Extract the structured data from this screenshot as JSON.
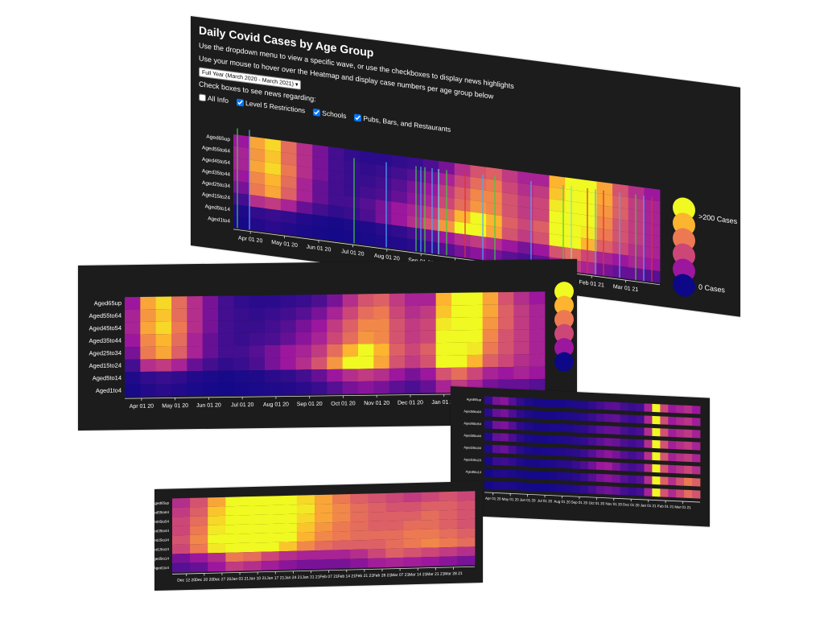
{
  "title": "Daily Covid Cases by Age Group",
  "instructions": [
    "Use the dropdown menu to view a specific wave, or use the checkboxes to display news highlights",
    "Use your mouse to hover over the Heatmap and display case numbers per age group below"
  ],
  "dropdown": "Full Year (March 2020 - March 2021)",
  "news_prompt": "Check boxes to see news regarding:",
  "checkboxes": [
    {
      "label": "All Info",
      "checked": false
    },
    {
      "label": "Level 5 Restrictions",
      "checked": true
    },
    {
      "label": "Schools",
      "checked": true
    },
    {
      "label": "Pubs, Bars, and Restaurants",
      "checked": true
    }
  ],
  "age_groups": [
    "Aged65up",
    "Aged55to64",
    "Aged45to54",
    "Aged35to44",
    "Aged25to34",
    "Aged15to24",
    "Aged5to14",
    "Aged1to4"
  ],
  "legend": {
    "colors": [
      "#f0f921",
      "#fdb42f",
      "#ed7953",
      "#cc4778",
      "#9c179e",
      "#0d0887"
    ],
    "max": {
      "value": 200,
      "label": ">200 Cases"
    },
    "min": {
      "value": 0,
      "label": "0 Cases"
    }
  },
  "full_year": {
    "x_ticks": [
      "Apr 01 20",
      "May 01 20",
      "Jun 01 20",
      "Jul 01 20",
      "Aug 01 20",
      "Sep 01 20",
      "Oct 01 20",
      "Nov 01 20",
      "Dec 01 20",
      "Jan 01 21",
      "Feb 01 21",
      "Mar 01 21"
    ],
    "cells": [
      [
        40,
        150,
        180,
        110,
        60,
        30,
        15,
        10,
        8,
        8,
        10,
        12,
        18,
        30,
        60,
        90,
        100,
        70,
        50,
        50,
        160,
        230,
        210,
        150,
        90,
        60,
        40
      ],
      [
        50,
        140,
        170,
        110,
        60,
        30,
        15,
        12,
        10,
        12,
        15,
        20,
        30,
        50,
        80,
        110,
        120,
        80,
        60,
        70,
        170,
        240,
        220,
        150,
        100,
        70,
        50
      ],
      [
        50,
        150,
        180,
        120,
        60,
        30,
        15,
        12,
        12,
        15,
        20,
        30,
        40,
        70,
        100,
        130,
        130,
        90,
        70,
        80,
        190,
        240,
        210,
        140,
        100,
        70,
        50
      ],
      [
        40,
        130,
        160,
        110,
        50,
        25,
        15,
        12,
        15,
        18,
        25,
        35,
        50,
        80,
        110,
        140,
        130,
        90,
        70,
        80,
        200,
        240,
        200,
        130,
        90,
        70,
        50
      ],
      [
        30,
        120,
        150,
        100,
        50,
        25,
        15,
        15,
        20,
        30,
        40,
        50,
        70,
        110,
        160,
        210,
        160,
        100,
        80,
        100,
        220,
        250,
        190,
        120,
        90,
        70,
        50
      ],
      [
        15,
        60,
        70,
        50,
        25,
        15,
        10,
        12,
        18,
        30,
        40,
        60,
        90,
        140,
        200,
        220,
        150,
        90,
        70,
        90,
        200,
        230,
        160,
        100,
        80,
        60,
        50
      ],
      [
        5,
        10,
        12,
        10,
        6,
        4,
        3,
        4,
        5,
        8,
        10,
        15,
        25,
        40,
        60,
        70,
        60,
        40,
        30,
        40,
        90,
        110,
        80,
        50,
        40,
        50,
        40
      ],
      [
        3,
        6,
        8,
        6,
        4,
        3,
        2,
        3,
        4,
        5,
        6,
        8,
        12,
        20,
        30,
        35,
        30,
        22,
        18,
        25,
        50,
        70,
        50,
        30,
        25,
        25,
        20
      ]
    ]
  },
  "wave_detail": {
    "x_ticks": [
      "Apr 01 20",
      "May 01 20",
      "Jun 01 20",
      "Jul 01 20",
      "Aug 01 20",
      "Sep 01 20",
      "Oct 01 20",
      "Nov 01 20",
      "Dec 01 20",
      "Jan 01 21",
      "Feb 01 21",
      "Mar 01 21"
    ],
    "cells": [
      [
        10,
        30,
        35,
        20,
        10,
        5,
        3,
        3,
        3,
        3,
        4,
        5,
        6,
        10,
        15,
        20,
        22,
        15,
        12,
        15,
        50,
        220,
        80,
        40,
        50,
        60,
        40
      ],
      [
        8,
        25,
        30,
        18,
        9,
        5,
        3,
        3,
        3,
        4,
        5,
        6,
        8,
        12,
        18,
        22,
        24,
        16,
        12,
        16,
        55,
        225,
        85,
        42,
        55,
        65,
        45
      ],
      [
        8,
        28,
        32,
        20,
        9,
        5,
        3,
        3,
        4,
        4,
        5,
        7,
        9,
        14,
        20,
        25,
        25,
        17,
        13,
        17,
        58,
        225,
        88,
        45,
        58,
        68,
        48
      ],
      [
        6,
        24,
        28,
        17,
        8,
        4,
        3,
        3,
        4,
        5,
        6,
        8,
        10,
        16,
        22,
        28,
        26,
        18,
        14,
        18,
        60,
        230,
        90,
        46,
        60,
        70,
        50
      ],
      [
        5,
        22,
        26,
        16,
        8,
        4,
        3,
        4,
        5,
        6,
        7,
        9,
        12,
        20,
        30,
        36,
        30,
        20,
        15,
        20,
        62,
        230,
        92,
        48,
        62,
        72,
        52
      ],
      [
        3,
        12,
        14,
        10,
        5,
        3,
        3,
        4,
        5,
        7,
        8,
        12,
        18,
        28,
        40,
        45,
        32,
        20,
        15,
        20,
        60,
        225,
        90,
        50,
        65,
        80,
        60
      ],
      [
        2,
        5,
        6,
        4,
        3,
        2,
        2,
        2,
        3,
        5,
        6,
        8,
        12,
        20,
        30,
        35,
        30,
        20,
        15,
        20,
        60,
        230,
        100,
        60,
        90,
        120,
        100
      ],
      [
        2,
        4,
        5,
        4,
        3,
        2,
        2,
        2,
        3,
        4,
        5,
        7,
        10,
        16,
        24,
        28,
        24,
        16,
        12,
        16,
        50,
        210,
        90,
        55,
        80,
        110,
        90
      ]
    ]
  },
  "third_wave": {
    "x_ticks": [
      "Dec 12 20",
      "Dec 20 20",
      "Dec 27 20",
      "Jan 03 21",
      "Jan 10 21",
      "Jan 17 21",
      "Jan 24 21",
      "Jan 31 21",
      "Feb 07 21",
      "Feb 14 21",
      "Feb 21 21",
      "Feb 28 21",
      "Mar 07 21",
      "Mar 14 21",
      "Mar 21 21",
      "Mar 28 21"
    ],
    "cells": [
      [
        60,
        90,
        150,
        230,
        240,
        230,
        210,
        180,
        150,
        120,
        100,
        90,
        80,
        70,
        80,
        90,
        80
      ],
      [
        70,
        100,
        170,
        240,
        250,
        240,
        220,
        190,
        150,
        130,
        110,
        100,
        90,
        90,
        100,
        100,
        90
      ],
      [
        80,
        110,
        180,
        240,
        250,
        240,
        220,
        180,
        150,
        130,
        110,
        100,
        100,
        100,
        110,
        100,
        90
      ],
      [
        80,
        120,
        190,
        240,
        250,
        230,
        210,
        170,
        140,
        120,
        110,
        100,
        100,
        110,
        110,
        100,
        90
      ],
      [
        90,
        130,
        200,
        250,
        250,
        220,
        200,
        160,
        130,
        120,
        110,
        110,
        110,
        120,
        120,
        110,
        100
      ],
      [
        80,
        120,
        190,
        240,
        230,
        200,
        170,
        130,
        110,
        100,
        100,
        100,
        110,
        120,
        130,
        120,
        110
      ],
      [
        30,
        40,
        60,
        120,
        110,
        80,
        60,
        50,
        50,
        50,
        60,
        80,
        100,
        90,
        80,
        70,
        60
      ],
      [
        20,
        25,
        40,
        70,
        60,
        45,
        35,
        30,
        30,
        30,
        35,
        45,
        50,
        45,
        40,
        35,
        30
      ]
    ]
  }
}
